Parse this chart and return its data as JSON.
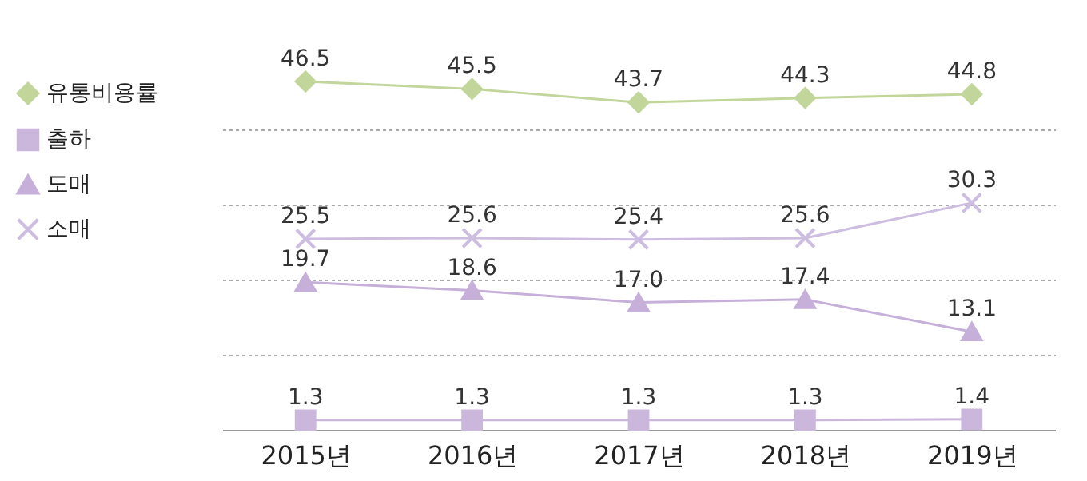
{
  "chart_data": {
    "type": "line",
    "categories": [
      "2015년",
      "2016년",
      "2017년",
      "2018년",
      "2019년"
    ],
    "series": [
      {
        "name": "유통비용률",
        "color": "#c2d69b",
        "marker": "diamond",
        "values": [
          46.5,
          45.5,
          43.7,
          44.3,
          44.8
        ],
        "value_labels": [
          "46.5",
          "45.5",
          "43.7",
          "44.3",
          "44.8"
        ]
      },
      {
        "name": "출하",
        "color": "#cbb7dc",
        "marker": "square",
        "values": [
          1.3,
          1.3,
          1.3,
          1.3,
          1.4
        ],
        "value_labels": [
          "1.3",
          "1.3",
          "1.3",
          "1.3",
          "1.4"
        ]
      },
      {
        "name": "도매",
        "color": "#c6b0da",
        "marker": "triangle",
        "values": [
          19.7,
          18.6,
          17.0,
          17.4,
          13.1
        ],
        "value_labels": [
          "19.7",
          "18.6",
          "17.0",
          "17.4",
          "13.1"
        ]
      },
      {
        "name": "소매",
        "color": "#cdbde0",
        "marker": "cross",
        "values": [
          25.5,
          25.6,
          25.4,
          25.6,
          30.3
        ],
        "value_labels": [
          "25.5",
          "25.6",
          "25.4",
          "25.6",
          "30.3"
        ]
      }
    ],
    "yticks": [
      {
        "value": 0,
        "label": null
      },
      {
        "value": 10,
        "label": null
      },
      {
        "value": 20,
        "label": null
      },
      {
        "value": 30,
        "label": null
      },
      {
        "value": 40,
        "label": null
      }
    ],
    "tick_labels": "x",
    "grid": "y",
    "legend": "left",
    "line_style": "solid"
  }
}
